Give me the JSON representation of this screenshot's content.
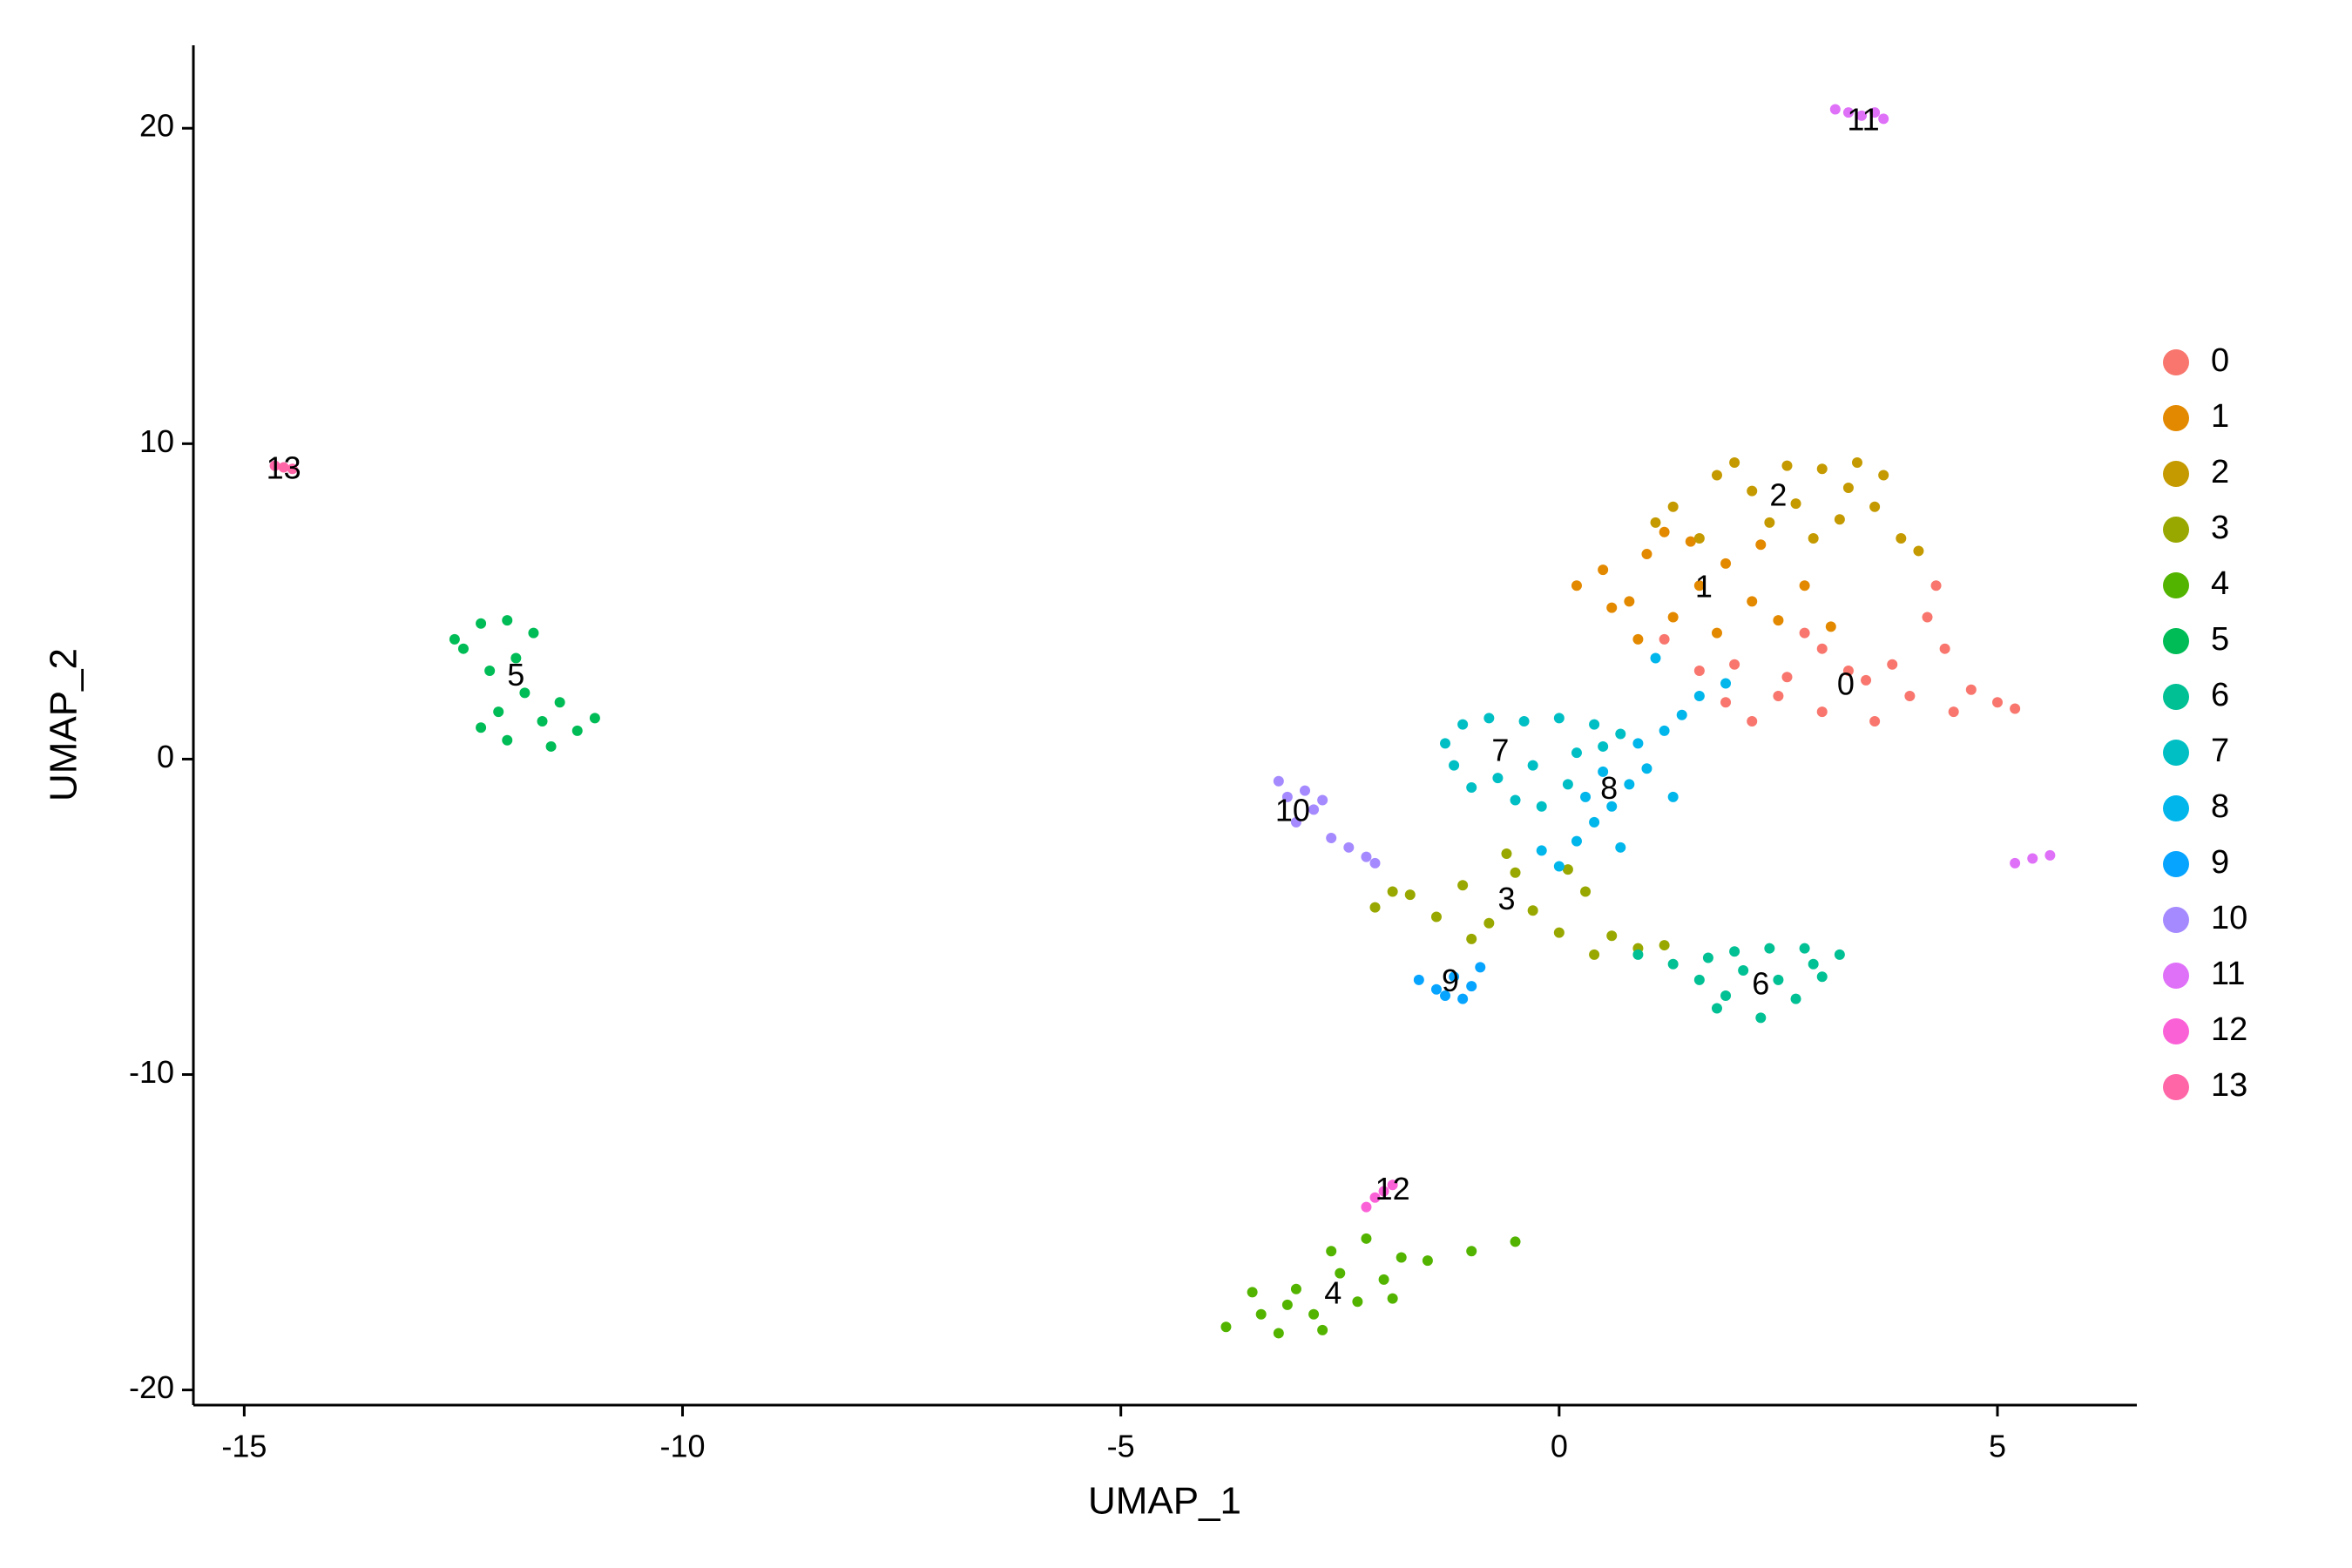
{
  "chart_data": {
    "type": "scatter",
    "x_label": "UMAP_1",
    "y_label": "UMAP_2",
    "xlim": [
      -15.58,
      6.59
    ],
    "ylim": [
      -20.48,
      22.63
    ],
    "xticks": [
      -15,
      -10,
      -5,
      0,
      5
    ],
    "yticks": [
      -20,
      -10,
      0,
      10,
      20
    ],
    "grid": false,
    "legend": "right",
    "series": [
      {
        "name": "0",
        "color": "#F8766D",
        "label_x": 3.27,
        "label_y": 2.3,
        "x": [
          2,
          2.5,
          3,
          3.5,
          4,
          4.5,
          5,
          5.2,
          3,
          3.8,
          4.2,
          4.3,
          2.2,
          1.6,
          2.8,
          3.3,
          4.7,
          1.2,
          3.6,
          2.6,
          4.4,
          1.9
        ],
        "y": [
          3,
          2,
          1.5,
          2.5,
          2,
          1.5,
          1.8,
          1.6,
          3.5,
          3,
          4.5,
          5.5,
          1.2,
          2.8,
          4,
          2.8,
          2.2,
          3.8,
          1.2,
          2.6,
          3.5,
          1.8
        ]
      },
      {
        "name": "1",
        "color": "#E38900",
        "label_x": 1.65,
        "label_y": 5.4,
        "x": [
          0.2,
          0.5,
          0.8,
          1,
          1.3,
          1.6,
          1.9,
          2.2,
          2.5,
          2.8,
          3.1,
          1.2,
          0.6,
          1.8,
          2.3,
          0.9,
          1.5
        ],
        "y": [
          5.5,
          6,
          5,
          6.5,
          4.5,
          5.5,
          6.2,
          5,
          4.4,
          5.5,
          4.2,
          7.2,
          4.8,
          4,
          6.8,
          3.8,
          6.9
        ]
      },
      {
        "name": "2",
        "color": "#C49A00",
        "label_x": 2.5,
        "label_y": 8.3,
        "x": [
          1.3,
          1.8,
          2.2,
          2.6,
          3,
          3.3,
          3.6,
          3.9,
          4.1,
          2.4,
          2.9,
          1.6,
          3.4,
          2,
          3.7,
          1.1,
          2.7,
          3.2
        ],
        "y": [
          8,
          9,
          8.5,
          9.3,
          9.2,
          8.6,
          8,
          7,
          6.6,
          7.5,
          7,
          7,
          9.4,
          9.4,
          9,
          7.5,
          8.1,
          7.6
        ]
      },
      {
        "name": "3",
        "color": "#99A800",
        "label_x": -0.6,
        "label_y": -4.5,
        "x": [
          -2.1,
          -1.7,
          -1.4,
          -1.1,
          -0.8,
          -0.5,
          -0.3,
          0,
          0.3,
          0.6,
          0.9,
          1.2,
          -1,
          -0.6,
          0.1,
          -1.9,
          0.4
        ],
        "y": [
          -4.7,
          -4.3,
          -5,
          -4,
          -5.2,
          -3.6,
          -4.8,
          -5.5,
          -4.2,
          -5.6,
          -6,
          -5.9,
          -5.7,
          -3,
          -3.5,
          -4.2,
          -6.2
        ]
      },
      {
        "name": "4",
        "color": "#53B400",
        "label_x": -2.58,
        "label_y": -17,
        "x": [
          -3.8,
          -3.4,
          -3.2,
          -3,
          -2.8,
          -2.5,
          -2.3,
          -2,
          -1.8,
          -2.2,
          -1.5,
          -1,
          -0.5,
          -3.5,
          -2.7,
          -1.9,
          -2.6,
          -3.1
        ],
        "y": [
          -18,
          -17.6,
          -18.2,
          -16.8,
          -17.6,
          -16.3,
          -17.2,
          -16.5,
          -15.8,
          -15.2,
          -15.9,
          -15.6,
          -15.3,
          -16.9,
          -18.1,
          -17.1,
          -15.6,
          -17.3
        ]
      },
      {
        "name": "5",
        "color": "#00BC56",
        "label_x": -11.9,
        "label_y": 2.6,
        "x": [
          -12.6,
          -12.3,
          -12,
          -11.7,
          -11.9,
          -12.2,
          -11.8,
          -12.1,
          -11.6,
          -12,
          -11.5,
          -11.2,
          -11.4,
          -12.3,
          -11,
          -12.5
        ],
        "y": [
          3.8,
          4.3,
          4.4,
          4,
          3.2,
          2.8,
          2.1,
          1.5,
          1.2,
          0.6,
          0.4,
          0.9,
          1.8,
          1,
          1.3,
          3.5
        ]
      },
      {
        "name": "6",
        "color": "#00C094",
        "label_x": 2.3,
        "label_y": -7.2,
        "x": [
          0.9,
          1.3,
          1.7,
          2,
          2.4,
          2.8,
          3.2,
          3,
          2.7,
          2.3,
          1.9,
          1.6,
          2.5,
          2.1,
          2.9,
          1.8
        ],
        "y": [
          -6.2,
          -6.5,
          -6.3,
          -6.1,
          -6,
          -6,
          -6.2,
          -6.9,
          -7.6,
          -8.2,
          -7.5,
          -7,
          -7,
          -6.7,
          -6.5,
          -7.9
        ]
      },
      {
        "name": "7",
        "color": "#00BFC4",
        "label_x": -0.67,
        "label_y": 0.2,
        "x": [
          -1.3,
          -1.1,
          -0.8,
          -0.4,
          0,
          0.4,
          0.7,
          0.2,
          -0.3,
          -0.7,
          -1,
          -0.5,
          -0.2,
          0.1,
          -1.2,
          0.5
        ],
        "y": [
          0.5,
          1.1,
          1.3,
          1.2,
          1.3,
          1.1,
          0.8,
          0.2,
          -0.2,
          -0.6,
          -0.9,
          -1.3,
          -1.5,
          -0.8,
          -0.2,
          0.4
        ]
      },
      {
        "name": "8",
        "color": "#00B6EB",
        "label_x": 0.57,
        "label_y": -1,
        "x": [
          0,
          0.2,
          0.4,
          0.6,
          0.8,
          1,
          0.9,
          1.2,
          1.4,
          1.6,
          1.9,
          0.3,
          0.7,
          1.1,
          0.5,
          -0.2,
          1.3
        ],
        "y": [
          -3.4,
          -2.6,
          -2,
          -1.5,
          -0.8,
          -0.3,
          0.5,
          0.9,
          1.4,
          2,
          2.4,
          -1.2,
          -2.8,
          3.2,
          -0.4,
          -2.9,
          -1.2
        ]
      },
      {
        "name": "9",
        "color": "#06A4FF",
        "label_x": -1.24,
        "label_y": -7.1,
        "x": [
          -1.6,
          -1.4,
          -1.2,
          -1,
          -0.9,
          -1.3,
          -1.1
        ],
        "y": [
          -7,
          -7.3,
          -6.9,
          -7.2,
          -6.6,
          -7.5,
          -7.6
        ]
      },
      {
        "name": "10",
        "color": "#A58AFF",
        "label_x": -3.04,
        "label_y": -1.7,
        "x": [
          -3.2,
          -3.1,
          -2.9,
          -2.8,
          -3,
          -2.6,
          -2.4,
          -2.2,
          -2.1,
          -2.7
        ],
        "y": [
          -0.7,
          -1.2,
          -1,
          -1.6,
          -2,
          -2.5,
          -2.8,
          -3.1,
          -3.3,
          -1.3
        ]
      },
      {
        "name": "11",
        "color": "#DF70F8",
        "label_x": 3.47,
        "label_y": 20.2,
        "x": [
          3.15,
          3.3,
          3.45,
          3.6,
          3.7,
          5.2,
          5.4,
          5.6
        ],
        "y": [
          20.6,
          20.5,
          20.4,
          20.5,
          20.3,
          -3.3,
          -3.15,
          -3.05
        ]
      },
      {
        "name": "12",
        "color": "#FB61D7",
        "label_x": -1.9,
        "label_y": -13.7,
        "x": [
          -2.2,
          -2.1,
          -2,
          -1.9
        ],
        "y": [
          -14.2,
          -13.9,
          -13.7,
          -13.5
        ]
      },
      {
        "name": "13",
        "color": "#FF66A8",
        "label_x": -14.55,
        "label_y": 9.15,
        "x": [
          -14.65,
          -14.55,
          -14.45
        ],
        "y": [
          9.3,
          9.25,
          9.2
        ]
      }
    ]
  }
}
